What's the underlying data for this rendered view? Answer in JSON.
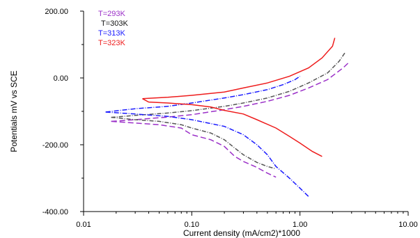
{
  "chart_data": {
    "type": "line",
    "x_scale": "log",
    "xlabel": "Current density (mA/cm2)*1000",
    "ylabel": "Potentials mV  vs SCE",
    "xlim": [
      0.01,
      10
    ],
    "ylim": [
      -400,
      200
    ],
    "x_ticks": [
      {
        "value": 0.01,
        "label": "0.01"
      },
      {
        "value": 0.1,
        "label": "0.10"
      },
      {
        "value": 1,
        "label": "1.00"
      },
      {
        "value": 10,
        "label": "10.00"
      }
    ],
    "y_ticks": [
      {
        "value": 200,
        "label": "200.00"
      },
      {
        "value": 0,
        "label": "0.00"
      },
      {
        "value": -200,
        "label": "-200.00"
      },
      {
        "value": -400,
        "label": "-400.00"
      }
    ],
    "grid": false,
    "legend_position": "top-left",
    "series": [
      {
        "name": "T=293K",
        "color": "#9b30c8",
        "dash": "8,4",
        "anodic": [
          [
            0.018,
            -130
          ],
          [
            0.03,
            -125
          ],
          [
            0.06,
            -117
          ],
          [
            0.1,
            -110
          ],
          [
            0.2,
            -95
          ],
          [
            0.3,
            -85
          ],
          [
            0.5,
            -70
          ],
          [
            0.8,
            -52
          ],
          [
            1.2,
            -30
          ],
          [
            1.8,
            -5
          ],
          [
            2.5,
            30
          ],
          [
            2.8,
            45
          ]
        ],
        "cathodic": [
          [
            0.018,
            -130
          ],
          [
            0.03,
            -135
          ],
          [
            0.05,
            -140
          ],
          [
            0.08,
            -150
          ],
          [
            0.1,
            -170
          ],
          [
            0.15,
            -185
          ],
          [
            0.2,
            -205
          ],
          [
            0.25,
            -235
          ],
          [
            0.3,
            -250
          ],
          [
            0.4,
            -268
          ],
          [
            0.5,
            -285
          ],
          [
            0.6,
            -297
          ]
        ]
      },
      {
        "name": "T=303K",
        "color": "#555555",
        "dash": "6,2,1,2",
        "anodic": [
          [
            0.018,
            -118
          ],
          [
            0.03,
            -112
          ],
          [
            0.06,
            -105
          ],
          [
            0.1,
            -98
          ],
          [
            0.2,
            -85
          ],
          [
            0.3,
            -75
          ],
          [
            0.5,
            -60
          ],
          [
            0.8,
            -40
          ],
          [
            1.2,
            -15
          ],
          [
            1.8,
            15
          ],
          [
            2.3,
            50
          ],
          [
            2.6,
            75
          ]
        ],
        "cathodic": [
          [
            0.018,
            -118
          ],
          [
            0.03,
            -125
          ],
          [
            0.05,
            -130
          ],
          [
            0.08,
            -140
          ],
          [
            0.1,
            -150
          ],
          [
            0.15,
            -165
          ],
          [
            0.2,
            -185
          ],
          [
            0.25,
            -210
          ],
          [
            0.3,
            -230
          ],
          [
            0.4,
            -253
          ],
          [
            0.5,
            -265
          ],
          [
            0.6,
            -272
          ]
        ]
      },
      {
        "name": "T=313K",
        "color": "#1a1aff",
        "dash": "7,2,1,2",
        "anodic": [
          [
            0.016,
            -102
          ],
          [
            0.03,
            -92
          ],
          [
            0.06,
            -85
          ],
          [
            0.1,
            -75
          ],
          [
            0.2,
            -60
          ],
          [
            0.3,
            -50
          ],
          [
            0.5,
            -35
          ],
          [
            0.7,
            -20
          ],
          [
            0.9,
            -5
          ],
          [
            1.0,
            5
          ]
        ],
        "cathodic": [
          [
            0.016,
            -102
          ],
          [
            0.03,
            -108
          ],
          [
            0.06,
            -115
          ],
          [
            0.1,
            -125
          ],
          [
            0.2,
            -145
          ],
          [
            0.3,
            -170
          ],
          [
            0.4,
            -200
          ],
          [
            0.5,
            -230
          ],
          [
            0.6,
            -265
          ],
          [
            0.8,
            -300
          ],
          [
            1.0,
            -330
          ],
          [
            1.2,
            -355
          ]
        ]
      },
      {
        "name": "T=323K",
        "color": "#ee1c1c",
        "dash": "",
        "anodic": [
          [
            0.035,
            -62
          ],
          [
            0.06,
            -58
          ],
          [
            0.1,
            -52
          ],
          [
            0.2,
            -42
          ],
          [
            0.3,
            -30
          ],
          [
            0.5,
            -15
          ],
          [
            0.8,
            5
          ],
          [
            1.2,
            30
          ],
          [
            1.6,
            60
          ],
          [
            2.0,
            95
          ],
          [
            2.1,
            120
          ]
        ],
        "cathodic": [
          [
            0.035,
            -62
          ],
          [
            0.04,
            -72
          ],
          [
            0.06,
            -75
          ],
          [
            0.1,
            -80
          ],
          [
            0.15,
            -87
          ],
          [
            0.2,
            -97
          ],
          [
            0.3,
            -108
          ],
          [
            0.4,
            -125
          ],
          [
            0.6,
            -150
          ],
          [
            0.8,
            -175
          ],
          [
            1.0,
            -195
          ],
          [
            1.3,
            -220
          ],
          [
            1.6,
            -235
          ]
        ]
      }
    ]
  }
}
